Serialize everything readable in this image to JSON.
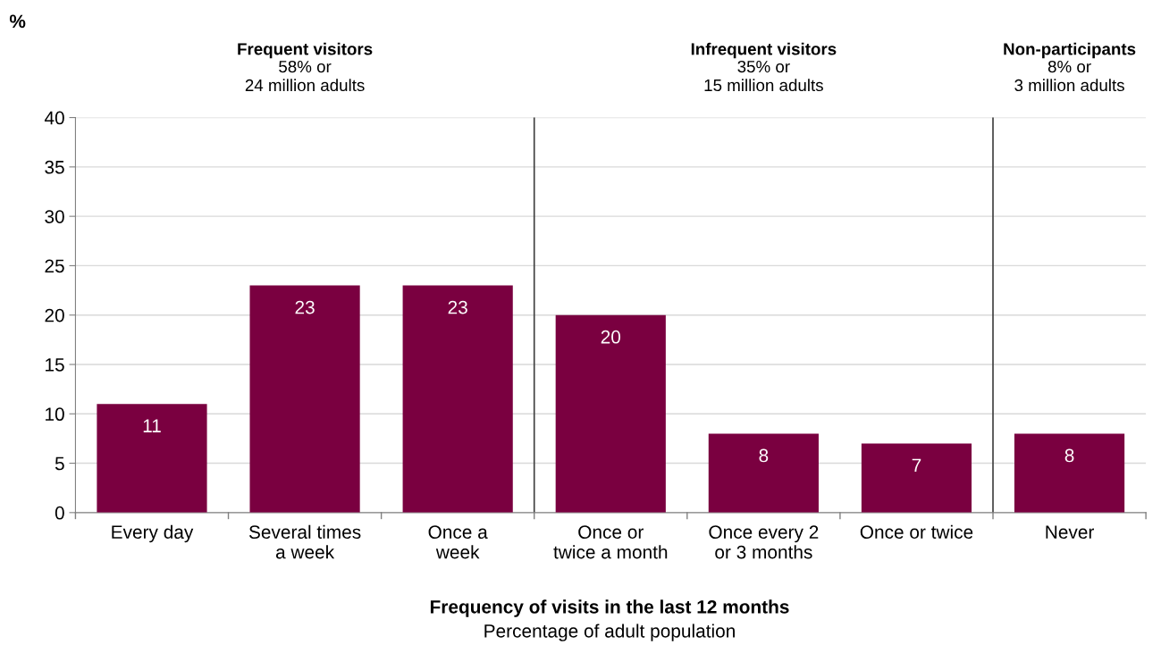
{
  "chart_data": {
    "type": "bar",
    "ylabel": "%",
    "xlabel": "Frequency of visits in the last 12 months",
    "categories": [
      "Every day",
      "Several times\na week",
      "Once a\nweek",
      "Once or\ntwice a month",
      "Once every 2\nor 3 months",
      "Once or twice",
      "Never"
    ],
    "values": [
      11,
      23,
      23,
      20,
      8,
      7,
      8
    ],
    "color": "#7a0040",
    "data_labels": true,
    "ylim": [
      0,
      40
    ],
    "yticks": [
      0,
      5,
      10,
      15,
      20,
      25,
      30,
      35,
      40
    ],
    "grid": "y",
    "annotations": [
      "Frequent visitors\n58% or\n24 million adults",
      "Infrequent visitors\n35% or\n15 million adults",
      "Non-participants\n8% or\n3 million adults",
      "Percentage of adult population"
    ]
  }
}
